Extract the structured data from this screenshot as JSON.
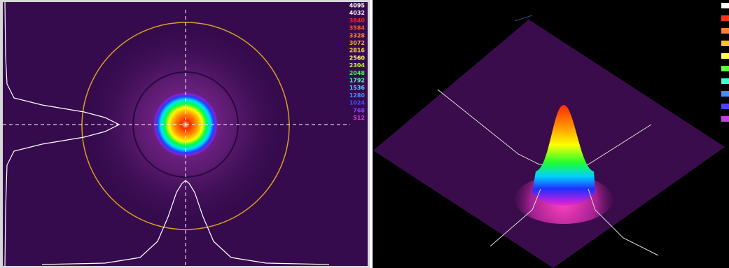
{
  "left_panel": {
    "colorbar_labels": [
      {
        "text": "4095",
        "color": "#ffffff"
      },
      {
        "text": "4032",
        "color": "#f0f0f0"
      },
      {
        "text": "3840",
        "color": "#ff2020"
      },
      {
        "text": "3584",
        "color": "#ff5a20"
      },
      {
        "text": "3328",
        "color": "#ff8a30"
      },
      {
        "text": "3072",
        "color": "#ffb030"
      },
      {
        "text": "2816",
        "color": "#ffd840"
      },
      {
        "text": "2560",
        "color": "#ffff60"
      },
      {
        "text": "2304",
        "color": "#b0ff40"
      },
      {
        "text": "2048",
        "color": "#40ff40"
      },
      {
        "text": "1792",
        "color": "#40ffc0"
      },
      {
        "text": "1536",
        "color": "#40e0ff"
      },
      {
        "text": "1280",
        "color": "#4090ff"
      },
      {
        "text": "1024",
        "color": "#4050ff"
      },
      {
        "text": "768",
        "color": "#8040ff"
      },
      {
        "text": "512",
        "color": "#e040e0"
      }
    ]
  }
}
